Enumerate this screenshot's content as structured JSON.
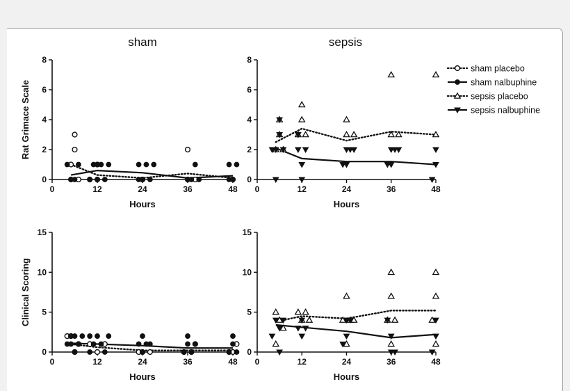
{
  "columns": {
    "sham": "sham",
    "sepsis": "sepsis"
  },
  "legend": [
    {
      "label": "sham placebo",
      "marker": "open-circle",
      "line": "dotted"
    },
    {
      "label": "sham nalbuphine",
      "marker": "filled-circle",
      "line": "solid"
    },
    {
      "label": "sepsis placebo",
      "marker": "open-triangle-up",
      "line": "dotted"
    },
    {
      "label": "sepsis nalbuphine",
      "marker": "filled-triangle-down",
      "line": "solid"
    }
  ],
  "chart_data": [
    {
      "type": "scatter",
      "title": "sham",
      "xlabel": "Hours",
      "ylabel": "Rat Grimace Scale",
      "xlim": [
        0,
        48
      ],
      "ylim": [
        0,
        8
      ],
      "xticks": [
        "0",
        "12",
        "24",
        "36",
        "48"
      ],
      "yticks": [
        "0",
        "2",
        "4",
        "6",
        "8"
      ],
      "series": [
        {
          "name": "sham placebo",
          "marker": "open-circle",
          "line": "dotted",
          "points": [
            [
              5,
              0
            ],
            [
              5,
              1
            ],
            [
              6,
              2
            ],
            [
              6,
              3
            ],
            [
              7,
              0
            ],
            [
              10,
              0
            ],
            [
              12,
              0
            ],
            [
              12,
              1
            ],
            [
              24,
              0
            ],
            [
              36,
              0
            ],
            [
              36,
              2
            ],
            [
              38,
              0
            ],
            [
              48,
              0
            ]
          ],
          "mean": [
            [
              5,
              1.0
            ],
            [
              12,
              0.3
            ],
            [
              24,
              0.1
            ],
            [
              36,
              0.4
            ],
            [
              48,
              0.1
            ]
          ]
        },
        {
          "name": "sham nalbuphine",
          "marker": "filled-circle",
          "line": "solid",
          "points": [
            [
              4,
              1
            ],
            [
              5,
              0
            ],
            [
              6,
              0
            ],
            [
              7,
              1
            ],
            [
              10,
              0
            ],
            [
              11,
              1
            ],
            [
              12,
              0
            ],
            [
              12,
              1
            ],
            [
              13,
              1
            ],
            [
              14,
              0
            ],
            [
              15,
              1
            ],
            [
              23,
              0
            ],
            [
              23,
              1
            ],
            [
              24,
              0
            ],
            [
              25,
              1
            ],
            [
              26,
              0
            ],
            [
              27,
              1
            ],
            [
              36,
              0
            ],
            [
              37,
              0
            ],
            [
              38,
              1
            ],
            [
              39,
              0
            ],
            [
              47,
              0
            ],
            [
              47,
              1
            ],
            [
              48,
              0
            ],
            [
              49,
              1
            ]
          ],
          "mean": [
            [
              5,
              0.3
            ],
            [
              12,
              0.6
            ],
            [
              24,
              0.45
            ],
            [
              36,
              0.1
            ],
            [
              48,
              0.25
            ]
          ]
        }
      ]
    },
    {
      "type": "scatter",
      "title": "sepsis",
      "xlabel": "Hours",
      "ylabel": "",
      "xlim": [
        0,
        48
      ],
      "ylim": [
        0,
        8
      ],
      "xticks": [
        "0",
        "12",
        "24",
        "36",
        "48"
      ],
      "yticks": [
        "0",
        "2",
        "4",
        "6",
        "8"
      ],
      "series": [
        {
          "name": "sepsis placebo",
          "marker": "open-triangle-up",
          "line": "dotted",
          "points": [
            [
              5,
              2
            ],
            [
              6,
              3
            ],
            [
              6,
              4
            ],
            [
              7,
              2
            ],
            [
              11,
              3
            ],
            [
              12,
              4
            ],
            [
              12,
              5
            ],
            [
              13,
              3
            ],
            [
              24,
              3
            ],
            [
              24,
              4
            ],
            [
              26,
              3
            ],
            [
              36,
              3
            ],
            [
              36,
              7
            ],
            [
              38,
              3
            ],
            [
              48,
              3
            ],
            [
              48,
              7
            ]
          ],
          "mean": [
            [
              5,
              2.5
            ],
            [
              12,
              3.4
            ],
            [
              24,
              2.6
            ],
            [
              36,
              3.2
            ],
            [
              48,
              3.0
            ]
          ]
        },
        {
          "name": "sepsis nalbuphine",
          "marker": "filled-triangle-down",
          "line": "solid",
          "points": [
            [
              4,
              2
            ],
            [
              5,
              0
            ],
            [
              5,
              2
            ],
            [
              6,
              3
            ],
            [
              6,
              4
            ],
            [
              7,
              2
            ],
            [
              11,
              2
            ],
            [
              11,
              3
            ],
            [
              12,
              1
            ],
            [
              12,
              0
            ],
            [
              13,
              2
            ],
            [
              23,
              1
            ],
            [
              24,
              1
            ],
            [
              24,
              2
            ],
            [
              25,
              2
            ],
            [
              26,
              2
            ],
            [
              35,
              1
            ],
            [
              36,
              1
            ],
            [
              36,
              2
            ],
            [
              37,
              2
            ],
            [
              38,
              2
            ],
            [
              47,
              0
            ],
            [
              48,
              1
            ],
            [
              48,
              2
            ]
          ],
          "mean": [
            [
              5,
              2.1
            ],
            [
              12,
              1.4
            ],
            [
              24,
              1.2
            ],
            [
              36,
              1.2
            ],
            [
              48,
              1.0
            ]
          ]
        }
      ]
    },
    {
      "type": "scatter",
      "title": "",
      "xlabel": "Hours",
      "ylabel": "Clinical Scoring",
      "xlim": [
        0,
        48
      ],
      "ylim": [
        0,
        15
      ],
      "xticks": [
        "0",
        "12",
        "24",
        "36",
        "48"
      ],
      "yticks": [
        "0",
        "5",
        "10",
        "15"
      ],
      "series": [
        {
          "name": "sham placebo",
          "marker": "open-circle",
          "line": "dotted",
          "points": [
            [
              4,
              2
            ],
            [
              5,
              2
            ],
            [
              6,
              0
            ],
            [
              7,
              1
            ],
            [
              10,
              1
            ],
            [
              12,
              0
            ],
            [
              14,
              1
            ],
            [
              23,
              0
            ],
            [
              24,
              0
            ],
            [
              26,
              0
            ],
            [
              35,
              0
            ],
            [
              37,
              0
            ],
            [
              38,
              1
            ],
            [
              47,
              0
            ],
            [
              48,
              0
            ],
            [
              49,
              1
            ]
          ],
          "mean": [
            [
              5,
              1.0
            ],
            [
              12,
              0.6
            ],
            [
              24,
              0.2
            ],
            [
              36,
              0.2
            ],
            [
              48,
              0.2
            ]
          ]
        },
        {
          "name": "sham nalbuphine",
          "marker": "filled-circle",
          "line": "solid",
          "points": [
            [
              4,
              1
            ],
            [
              5,
              1
            ],
            [
              5,
              2
            ],
            [
              6,
              0
            ],
            [
              6,
              2
            ],
            [
              7,
              1
            ],
            [
              8,
              2
            ],
            [
              10,
              0
            ],
            [
              10,
              2
            ],
            [
              11,
              1
            ],
            [
              12,
              2
            ],
            [
              13,
              1
            ],
            [
              14,
              0
            ],
            [
              15,
              2
            ],
            [
              23,
              1
            ],
            [
              24,
              0
            ],
            [
              24,
              2
            ],
            [
              25,
              1
            ],
            [
              26,
              1
            ],
            [
              35,
              0
            ],
            [
              36,
              1
            ],
            [
              36,
              2
            ],
            [
              37,
              0
            ],
            [
              38,
              1
            ],
            [
              47,
              0
            ],
            [
              48,
              1
            ],
            [
              48,
              2
            ],
            [
              49,
              0
            ]
          ],
          "mean": [
            [
              5,
              1.1
            ],
            [
              12,
              1.0
            ],
            [
              24,
              0.8
            ],
            [
              36,
              0.5
            ],
            [
              48,
              0.5
            ]
          ]
        }
      ]
    },
    {
      "type": "scatter",
      "title": "",
      "xlabel": "Hours",
      "ylabel": "",
      "xlim": [
        0,
        48
      ],
      "ylim": [
        0,
        15
      ],
      "xticks": [
        "0",
        "12",
        "24",
        "36",
        "48"
      ],
      "yticks": [
        "0",
        "5",
        "10",
        "15"
      ],
      "series": [
        {
          "name": "sepsis placebo",
          "marker": "open-triangle-up",
          "line": "dotted",
          "points": [
            [
              5,
              1
            ],
            [
              5,
              5
            ],
            [
              6,
              4
            ],
            [
              7,
              3
            ],
            [
              11,
              5
            ],
            [
              12,
              4
            ],
            [
              13,
              5
            ],
            [
              14,
              4
            ],
            [
              23,
              4
            ],
            [
              24,
              1
            ],
            [
              24,
              7
            ],
            [
              25,
              4
            ],
            [
              26,
              4
            ],
            [
              35,
              4
            ],
            [
              36,
              1
            ],
            [
              36,
              7
            ],
            [
              36,
              10
            ],
            [
              37,
              4
            ],
            [
              47,
              4
            ],
            [
              48,
              1
            ],
            [
              48,
              7
            ],
            [
              48,
              10
            ]
          ],
          "mean": [
            [
              5,
              3.8
            ],
            [
              12,
              4.5
            ],
            [
              24,
              4.2
            ],
            [
              36,
              5.2
            ],
            [
              48,
              5.2
            ]
          ]
        },
        {
          "name": "sepsis nalbuphine",
          "marker": "filled-triangle-down",
          "line": "solid",
          "points": [
            [
              4,
              2
            ],
            [
              5,
              4
            ],
            [
              6,
              3
            ],
            [
              6,
              0
            ],
            [
              7,
              4
            ],
            [
              11,
              3
            ],
            [
              12,
              2
            ],
            [
              12,
              4
            ],
            [
              13,
              3
            ],
            [
              23,
              1
            ],
            [
              24,
              2
            ],
            [
              24,
              4
            ],
            [
              25,
              4
            ],
            [
              35,
              4
            ],
            [
              36,
              0
            ],
            [
              36,
              2
            ],
            [
              37,
              0
            ],
            [
              47,
              0
            ],
            [
              48,
              2
            ],
            [
              48,
              4
            ]
          ],
          "mean": [
            [
              5,
              3.4
            ],
            [
              12,
              3.1
            ],
            [
              24,
              2.6
            ],
            [
              36,
              1.8
            ],
            [
              48,
              2.2
            ]
          ]
        }
      ]
    }
  ]
}
